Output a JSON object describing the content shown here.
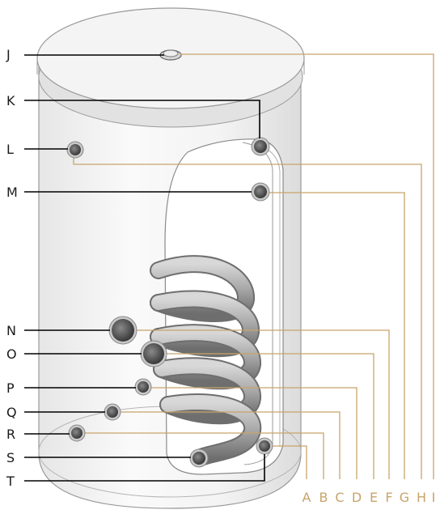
{
  "left_labels": [
    "J",
    "K",
    "L",
    "M",
    "N",
    "O",
    "P",
    "Q",
    "R",
    "S",
    "T"
  ],
  "bottom_labels": [
    "A",
    "B",
    "C",
    "D",
    "E",
    "F",
    "G",
    "H",
    "I"
  ],
  "colors": {
    "black_leader": "#000000",
    "gold_leader": "#c8a46a",
    "tank_outline": "#9a9a9a",
    "coil": "#9c9c9c"
  }
}
